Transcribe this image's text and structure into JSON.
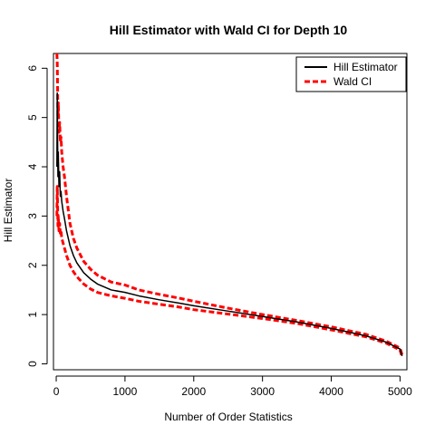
{
  "chart_data": {
    "type": "line",
    "title": "Hill Estimator with Wald CI for Depth 10",
    "xlabel": "Number of Order Statistics",
    "ylabel": "Hill Estimator",
    "xlim": [
      -40,
      5100
    ],
    "ylim": [
      -0.12,
      6.3
    ],
    "xticks": [
      0,
      1000,
      2000,
      3000,
      4000,
      5000
    ],
    "yticks": [
      0,
      1,
      2,
      3,
      4,
      5,
      6
    ],
    "grid": false,
    "legend": {
      "position": "top-right",
      "entries": [
        "Hill Estimator",
        "Wald CI"
      ]
    },
    "colors": {
      "estimator": "#000000",
      "ci": "#ff0000"
    },
    "series": [
      {
        "name": "Hill Estimator",
        "style": "solid",
        "x": [
          10,
          15,
          20,
          25,
          30,
          40,
          50,
          60,
          70,
          80,
          100,
          120,
          150,
          200,
          250,
          300,
          400,
          500,
          600,
          800,
          1000,
          1200,
          1500,
          1800,
          2000,
          2500,
          3000,
          3500,
          4000,
          4500,
          4800,
          5000,
          5030
        ],
        "y": [
          4.0,
          5.5,
          4.6,
          3.8,
          4.3,
          3.6,
          3.9,
          3.4,
          3.5,
          3.3,
          3.1,
          2.95,
          2.7,
          2.4,
          2.2,
          2.05,
          1.85,
          1.72,
          1.62,
          1.5,
          1.45,
          1.38,
          1.3,
          1.23,
          1.18,
          1.07,
          0.96,
          0.85,
          0.72,
          0.57,
          0.44,
          0.3,
          0.16
        ]
      },
      {
        "name": "Wald CI upper",
        "style": "dashed",
        "x": [
          10,
          15,
          20,
          25,
          30,
          40,
          50,
          60,
          70,
          80,
          100,
          120,
          150,
          200,
          250,
          300,
          400,
          500,
          600,
          800,
          1000,
          1200,
          1500,
          1800,
          2000,
          2500,
          3000,
          3500,
          4000,
          4500,
          4800,
          5000,
          5030
        ],
        "y": [
          6.3,
          6.1,
          5.6,
          5.0,
          5.3,
          4.7,
          4.9,
          4.5,
          4.6,
          4.3,
          4.0,
          3.8,
          3.4,
          2.85,
          2.55,
          2.35,
          2.08,
          1.92,
          1.8,
          1.66,
          1.6,
          1.5,
          1.41,
          1.33,
          1.27,
          1.13,
          1.0,
          0.88,
          0.75,
          0.6,
          0.46,
          0.32,
          0.18
        ]
      },
      {
        "name": "Wald CI lower",
        "style": "dashed",
        "x": [
          10,
          15,
          20,
          25,
          30,
          40,
          50,
          60,
          70,
          80,
          100,
          120,
          150,
          200,
          250,
          300,
          400,
          500,
          600,
          800,
          1000,
          1200,
          1500,
          1800,
          2000,
          2500,
          3000,
          3500,
          4000,
          4500,
          4800,
          5000,
          5030
        ],
        "y": [
          3.0,
          3.6,
          3.2,
          2.8,
          3.0,
          2.7,
          2.85,
          2.65,
          2.7,
          2.55,
          2.45,
          2.35,
          2.2,
          2.0,
          1.87,
          1.77,
          1.62,
          1.52,
          1.45,
          1.38,
          1.33,
          1.27,
          1.21,
          1.15,
          1.1,
          1.01,
          0.92,
          0.82,
          0.69,
          0.55,
          0.42,
          0.28,
          0.14
        ]
      }
    ]
  }
}
